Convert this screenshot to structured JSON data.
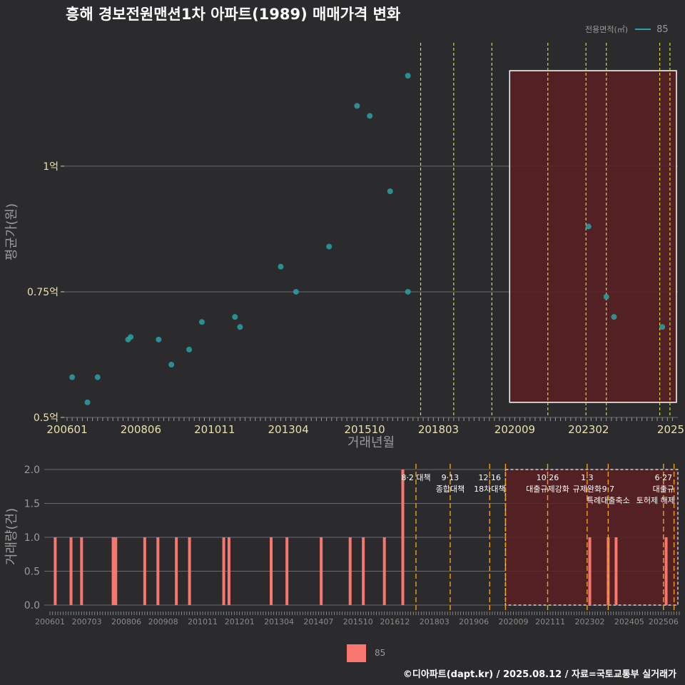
{
  "title": "흥해 경보전원맨션1차 아파트(1989) 매매가격 변화",
  "legend_top": {
    "title": "전용면적(㎡)",
    "item": "85",
    "color": "#2aa1a6"
  },
  "legend_bottom": {
    "item": "85",
    "color": "#f8766d"
  },
  "footer": "©디아파트(dapt.kr) / 2025.08.12 / 자료=국토교통부 실거래가",
  "chart_data": [
    {
      "type": "scatter",
      "title": "흥해 경보전원맨션1차 아파트(1989) 매매가격 변화",
      "xlabel": "거래년월",
      "ylabel": "평균가(원)",
      "x_ticks": [
        "200601",
        "200806",
        "201011",
        "201304",
        "201510",
        "201803",
        "202009",
        "202302",
        "2025"
      ],
      "y_ticks": [
        {
          "value": 0.5,
          "label": "0.5억"
        },
        {
          "value": 0.75,
          "label": "0.75억"
        },
        {
          "value": 1.0,
          "label": "1억"
        }
      ],
      "ylim": [
        0.5,
        1.21
      ],
      "y_unit": "억",
      "grid": true,
      "legend_position": "top-right",
      "series": [
        {
          "name": "85",
          "color": "#2aa1a6",
          "points": [
            {
              "x": "2006-03",
              "y": 0.58
            },
            {
              "x": "2006-09",
              "y": 0.53
            },
            {
              "x": "2007-01",
              "y": 0.58
            },
            {
              "x": "2008-01",
              "y": 0.655
            },
            {
              "x": "2008-02",
              "y": 0.66
            },
            {
              "x": "2009-01",
              "y": 0.655
            },
            {
              "x": "2009-06",
              "y": 0.605
            },
            {
              "x": "2010-01",
              "y": 0.635
            },
            {
              "x": "2010-06",
              "y": 0.69
            },
            {
              "x": "2011-07",
              "y": 0.7
            },
            {
              "x": "2011-09",
              "y": 0.68
            },
            {
              "x": "2013-01",
              "y": 0.8
            },
            {
              "x": "2013-07",
              "y": 0.75
            },
            {
              "x": "2014-08",
              "y": 0.84
            },
            {
              "x": "2015-07",
              "y": 1.12
            },
            {
              "x": "2015-12",
              "y": 1.1
            },
            {
              "x": "2016-08",
              "y": 0.95
            },
            {
              "x": "2017-03",
              "y": 1.18
            },
            {
              "x": "2017-03",
              "y": 0.75
            },
            {
              "x": "2023-02",
              "y": 0.88
            },
            {
              "x": "2023-09",
              "y": 0.74
            },
            {
              "x": "2023-12",
              "y": 0.7
            },
            {
              "x": "2025-07",
              "y": 0.68
            }
          ]
        }
      ],
      "policy_lines": [
        "2017-08",
        "2018-09",
        "2019-12",
        "2021-10",
        "2023-01",
        "2023-09",
        "2025-06",
        "2025-10"
      ],
      "highlight_range": {
        "from": "2020-07",
        "to": "2025-12",
        "ymin": 0.53,
        "ymax": 1.19
      }
    },
    {
      "type": "bar",
      "xlabel": "",
      "ylabel": "거래량(건)",
      "x_ticks": [
        "200601",
        "200703",
        "200806",
        "200908",
        "201011",
        "201201",
        "201304",
        "201407",
        "201510",
        "201612",
        "201803",
        "201906",
        "202009",
        "202111",
        "202302",
        "202405",
        "202506"
      ],
      "y_ticks": [
        {
          "value": 0,
          "label": "0.0"
        },
        {
          "value": 0.5,
          "label": "0.5"
        },
        {
          "value": 1.0,
          "label": "1.0"
        },
        {
          "value": 1.5,
          "label": "1.5"
        },
        {
          "value": 2.0,
          "label": "2.0"
        }
      ],
      "ylim": [
        0,
        2.0
      ],
      "grid": true,
      "series": [
        {
          "name": "85",
          "color": "#f8766d",
          "bars": [
            {
              "x": "2006-03",
              "y": 1
            },
            {
              "x": "2006-09",
              "y": 1
            },
            {
              "x": "2007-01",
              "y": 1
            },
            {
              "x": "2008-01",
              "y": 1
            },
            {
              "x": "2008-02",
              "y": 1
            },
            {
              "x": "2009-01",
              "y": 1
            },
            {
              "x": "2009-06",
              "y": 1
            },
            {
              "x": "2010-01",
              "y": 1
            },
            {
              "x": "2010-06",
              "y": 1
            },
            {
              "x": "2011-07",
              "y": 1
            },
            {
              "x": "2011-09",
              "y": 1
            },
            {
              "x": "2013-01",
              "y": 1
            },
            {
              "x": "2013-07",
              "y": 1
            },
            {
              "x": "2014-08",
              "y": 1
            },
            {
              "x": "2015-07",
              "y": 1
            },
            {
              "x": "2015-12",
              "y": 1
            },
            {
              "x": "2016-08",
              "y": 1
            },
            {
              "x": "2017-03",
              "y": 2
            },
            {
              "x": "2023-02",
              "y": 1
            },
            {
              "x": "2023-09",
              "y": 1
            },
            {
              "x": "2023-12",
              "y": 1
            },
            {
              "x": "2025-07",
              "y": 1
            }
          ]
        }
      ],
      "policy_lines": [
        "2017-08",
        "2018-09",
        "2019-12",
        "2020-06",
        "2021-10",
        "2023-01",
        "2023-09",
        "2025-06",
        "2025-10"
      ],
      "annotations": [
        {
          "x": "2017-08",
          "lines": [
            "8·2 대책"
          ]
        },
        {
          "x": "2018-09",
          "lines": [
            "9·13",
            "종합대책"
          ]
        },
        {
          "x": "2019-12",
          "lines": [
            "12·16",
            "18차대책"
          ]
        },
        {
          "x": "2021-10",
          "lines": [
            "10·26",
            "대출규제강화"
          ]
        },
        {
          "x": "2023-01",
          "lines": [
            "1·3",
            "규제완화"
          ]
        },
        {
          "x": "2023-09",
          "lines": [
            "",
            "9·7",
            "특례대출축소"
          ]
        },
        {
          "x": "2025-03",
          "lines": [
            "",
            "",
            "토허제 해제"
          ]
        },
        {
          "x": "2025-06",
          "lines": [
            "6·27",
            "대출규"
          ]
        }
      ],
      "highlight_range": {
        "from": "2020-06",
        "to": "2025-12",
        "ymin": 0,
        "ymax": 2.0
      }
    }
  ]
}
